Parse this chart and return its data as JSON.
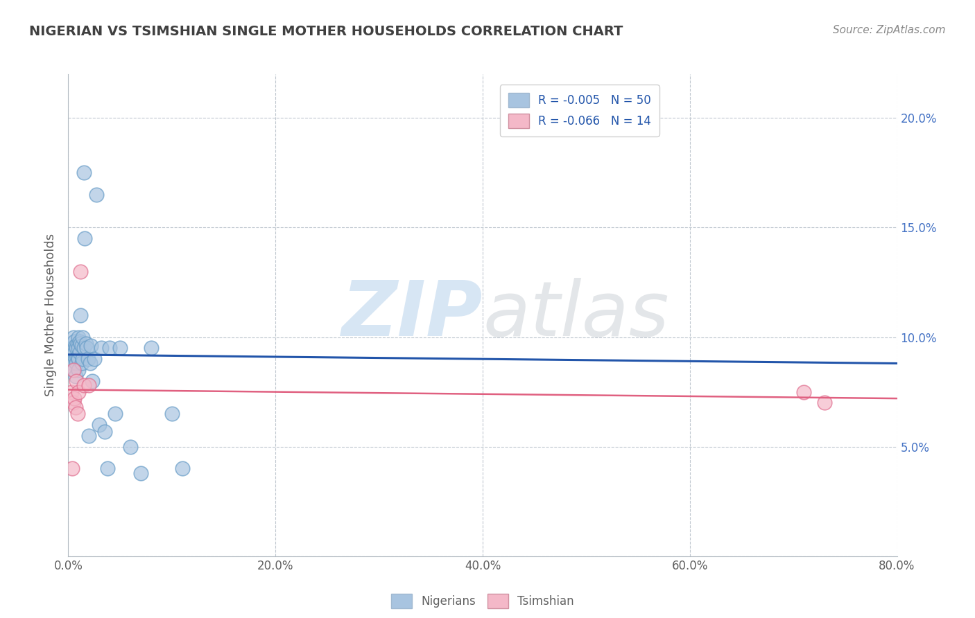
{
  "title": "NIGERIAN VS TSIMSHIAN SINGLE MOTHER HOUSEHOLDS CORRELATION CHART",
  "source": "Source: ZipAtlas.com",
  "ylabel": "Single Mother Households",
  "watermark_zip": "ZIP",
  "watermark_atlas": "atlas",
  "legend_nigerian": "R = -0.005   N = 50",
  "legend_tsimshian": "R = -0.066   N = 14",
  "nigerian_color": "#a8c4e0",
  "nigerian_edge": "#6a9ec8",
  "tsimshian_color": "#f4b8c8",
  "tsimshian_edge": "#e07090",
  "nigerian_line_color": "#2255aa",
  "tsimshian_line_color": "#e06080",
  "xlim": [
    0.0,
    0.8
  ],
  "ylim": [
    0.0,
    0.22
  ],
  "xticks": [
    0.0,
    0.2,
    0.4,
    0.6,
    0.8
  ],
  "yticks": [
    0.0,
    0.05,
    0.1,
    0.15,
    0.2
  ],
  "xtick_labels": [
    "0.0%",
    "20.0%",
    "40.0%",
    "60.0%",
    "80.0%"
  ],
  "ytick_labels_right": [
    "",
    "5.0%",
    "10.0%",
    "15.0%",
    "20.0%"
  ],
  "nigerian_x": [
    0.003,
    0.004,
    0.005,
    0.005,
    0.006,
    0.006,
    0.006,
    0.007,
    0.007,
    0.007,
    0.008,
    0.008,
    0.009,
    0.009,
    0.01,
    0.01,
    0.01,
    0.01,
    0.011,
    0.011,
    0.012,
    0.012,
    0.013,
    0.013,
    0.014,
    0.014,
    0.015,
    0.015,
    0.016,
    0.017,
    0.018,
    0.019,
    0.02,
    0.021,
    0.022,
    0.023,
    0.025,
    0.027,
    0.03,
    0.032,
    0.035,
    0.038,
    0.04,
    0.045,
    0.05,
    0.06,
    0.07,
    0.08,
    0.1,
    0.11
  ],
  "nigerian_y": [
    0.095,
    0.088,
    0.1,
    0.092,
    0.098,
    0.093,
    0.085,
    0.096,
    0.09,
    0.082,
    0.095,
    0.088,
    0.097,
    0.091,
    0.1,
    0.095,
    0.09,
    0.085,
    0.098,
    0.093,
    0.097,
    0.11,
    0.096,
    0.088,
    0.1,
    0.09,
    0.175,
    0.095,
    0.145,
    0.097,
    0.095,
    0.09,
    0.055,
    0.088,
    0.096,
    0.08,
    0.09,
    0.165,
    0.06,
    0.095,
    0.057,
    0.04,
    0.095,
    0.065,
    0.095,
    0.05,
    0.038,
    0.095,
    0.065,
    0.04
  ],
  "tsimshian_x": [
    0.003,
    0.004,
    0.005,
    0.005,
    0.006,
    0.007,
    0.008,
    0.009,
    0.01,
    0.012,
    0.015,
    0.02,
    0.71,
    0.73
  ],
  "tsimshian_y": [
    0.075,
    0.04,
    0.07,
    0.085,
    0.072,
    0.068,
    0.08,
    0.065,
    0.075,
    0.13,
    0.078,
    0.078,
    0.075,
    0.07
  ],
  "nigerian_trend_x": [
    0.0,
    0.8
  ],
  "nigerian_trend_y": [
    0.092,
    0.088
  ],
  "tsimshian_trend_x": [
    0.0,
    0.8
  ],
  "tsimshian_trend_y": [
    0.076,
    0.072
  ],
  "grid_color": "#c0c8d0",
  "background_color": "#ffffff",
  "title_color": "#404040",
  "right_tick_color": "#4472c4",
  "tick_color": "#606060"
}
